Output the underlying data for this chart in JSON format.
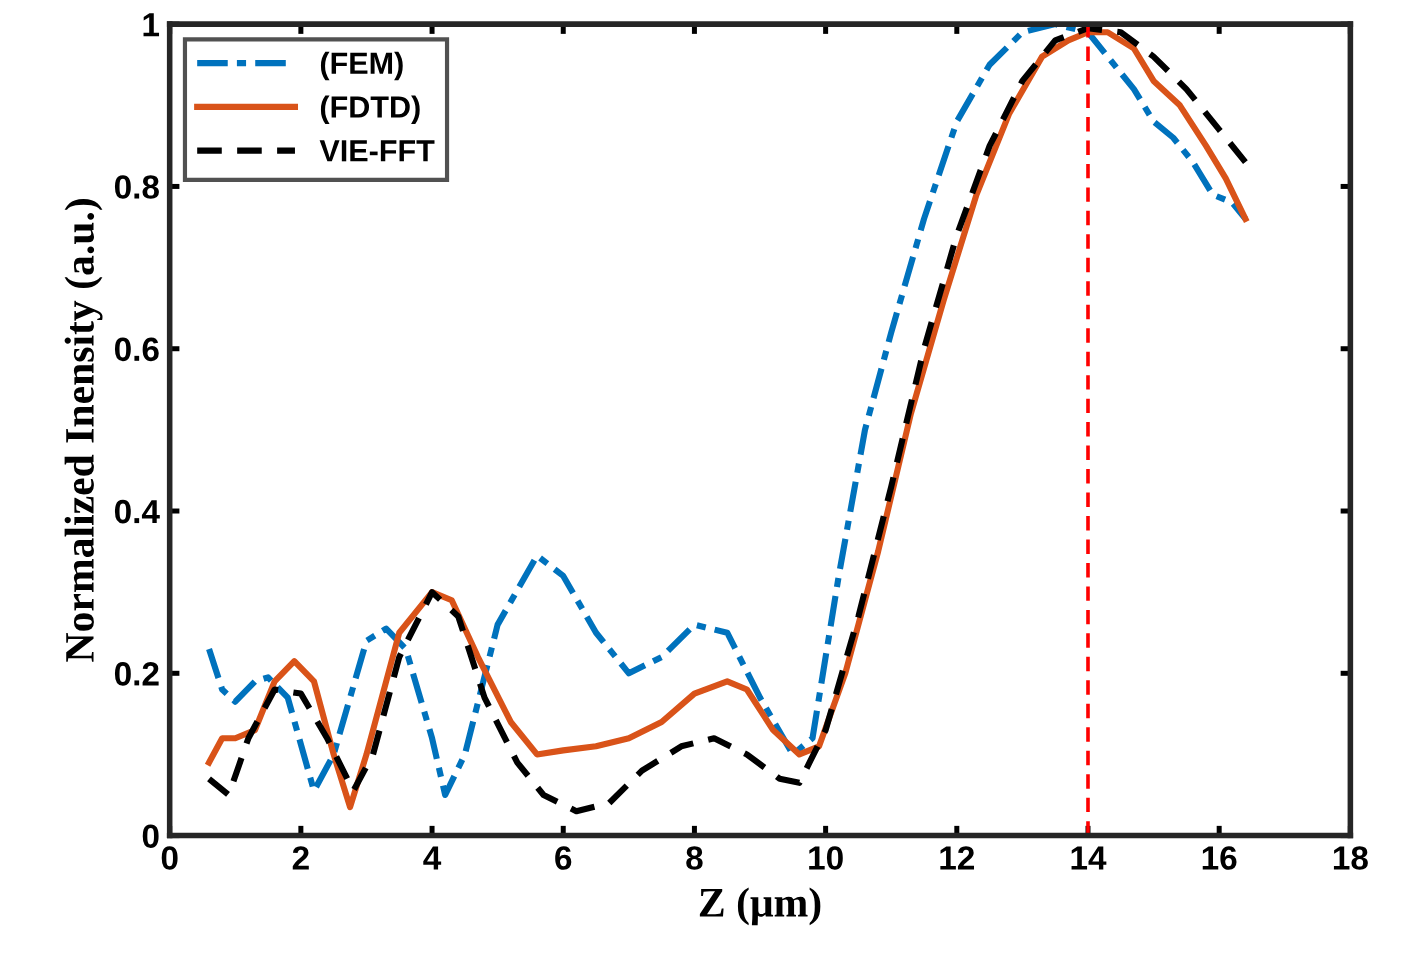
{
  "chart_data": {
    "type": "line",
    "xlabel": "Z (μm)",
    "ylabel": "Normalized Inensity (a.u.)",
    "xlim": [
      0,
      18
    ],
    "ylim": [
      0,
      1
    ],
    "xticks": [
      0,
      2,
      4,
      6,
      8,
      10,
      12,
      14,
      16,
      18
    ],
    "yticks": [
      0,
      0.2,
      0.4,
      0.6,
      0.8,
      1
    ],
    "grid": false,
    "legend": "top left",
    "marker": "none",
    "ref_lines": [
      {
        "axis": "x",
        "value": 14,
        "color": "#ff0000",
        "line_style": "dashed"
      }
    ],
    "series": [
      {
        "name": "(FEM)",
        "color": "#0072bd",
        "line_style": "dashdot",
        "x": [
          0.6,
          0.8,
          1.0,
          1.3,
          1.5,
          1.8,
          2.2,
          2.5,
          3.0,
          3.3,
          3.6,
          4.0,
          4.2,
          4.5,
          5.0,
          5.6,
          6.0,
          6.5,
          7.0,
          7.5,
          8.0,
          8.5,
          9.0,
          9.5,
          9.8,
          10.2,
          10.6,
          11,
          11.5,
          12,
          12.5,
          13,
          13.5,
          14,
          14.3,
          14.7,
          15,
          15.3,
          15.6,
          15.9,
          16.2,
          16.4
        ],
        "values": [
          0.23,
          0.18,
          0.165,
          0.19,
          0.195,
          0.17,
          0.055,
          0.1,
          0.24,
          0.255,
          0.23,
          0.12,
          0.05,
          0.1,
          0.26,
          0.345,
          0.32,
          0.25,
          0.2,
          0.22,
          0.26,
          0.25,
          0.17,
          0.1,
          0.12,
          0.32,
          0.5,
          0.62,
          0.76,
          0.88,
          0.95,
          0.99,
          1.0,
          0.99,
          0.96,
          0.92,
          0.88,
          0.86,
          0.83,
          0.79,
          0.78,
          0.76
        ]
      },
      {
        "name": "(FDTD)",
        "color": "#d95319",
        "line_style": "solid",
        "x": [
          0.6,
          0.8,
          1.0,
          1.3,
          1.6,
          1.9,
          2.2,
          2.5,
          2.75,
          3.0,
          3.5,
          4.0,
          4.3,
          4.7,
          5.2,
          5.6,
          6.0,
          6.5,
          7.0,
          7.5,
          8.0,
          8.5,
          8.8,
          9.2,
          9.6,
          9.9,
          10.3,
          10.8,
          11.3,
          11.8,
          12.3,
          12.8,
          13.3,
          13.7,
          14.0,
          14.3,
          14.7,
          15.0,
          15.4,
          15.8,
          16.1,
          16.4
        ],
        "values": [
          0.09,
          0.12,
          0.12,
          0.13,
          0.19,
          0.215,
          0.19,
          0.1,
          0.035,
          0.1,
          0.25,
          0.3,
          0.29,
          0.22,
          0.14,
          0.1,
          0.105,
          0.11,
          0.12,
          0.14,
          0.175,
          0.19,
          0.18,
          0.13,
          0.1,
          0.11,
          0.2,
          0.35,
          0.52,
          0.66,
          0.79,
          0.89,
          0.96,
          0.98,
          0.99,
          0.99,
          0.97,
          0.93,
          0.9,
          0.85,
          0.81,
          0.76
        ]
      },
      {
        "name": "VIE-FFT",
        "color": "#000000",
        "line_style": "dashed",
        "x": [
          0.6,
          0.9,
          1.2,
          1.6,
          2.0,
          2.4,
          2.8,
          3.1,
          3.5,
          4.0,
          4.4,
          4.8,
          5.3,
          5.7,
          6.2,
          6.7,
          7.2,
          7.8,
          8.3,
          8.8,
          9.3,
          9.6,
          10.0,
          10.5,
          11.0,
          11.5,
          12.0,
          12.5,
          13.0,
          13.5,
          14.0,
          14.5,
          15.0,
          15.5,
          16.0,
          16.4
        ],
        "values": [
          0.07,
          0.05,
          0.12,
          0.18,
          0.175,
          0.12,
          0.055,
          0.1,
          0.22,
          0.3,
          0.27,
          0.17,
          0.09,
          0.05,
          0.03,
          0.04,
          0.08,
          0.11,
          0.12,
          0.1,
          0.07,
          0.065,
          0.13,
          0.27,
          0.43,
          0.6,
          0.74,
          0.85,
          0.93,
          0.98,
          0.995,
          0.99,
          0.96,
          0.92,
          0.87,
          0.83
        ]
      }
    ]
  }
}
